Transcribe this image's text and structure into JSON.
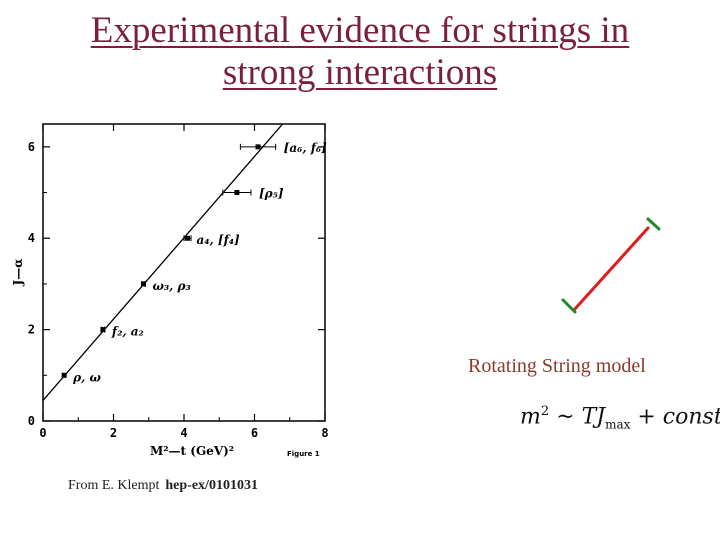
{
  "title": {
    "line1": "Experimental evidence for strings in",
    "line2": "strong interactions"
  },
  "chart_data": {
    "type": "scatter",
    "xlabel": "M²—t (GeV)²",
    "ylabel": "J—α",
    "xlim": [
      0,
      8
    ],
    "ylim": [
      0,
      6.5
    ],
    "x_ticks": [
      0,
      2,
      4,
      6,
      8
    ],
    "y_ticks": [
      0,
      2,
      4,
      6
    ],
    "figure_caption": "Figure 1",
    "points": [
      {
        "x": 0.6,
        "y": 1,
        "xerr": 0,
        "label": "ρ, ω"
      },
      {
        "x": 1.7,
        "y": 2,
        "xerr": 0.05,
        "label": "f₂, a₂"
      },
      {
        "x": 2.85,
        "y": 3,
        "xerr": 0.05,
        "label": "ω₃, ρ₃"
      },
      {
        "x": 4.1,
        "y": 4,
        "xerr": 0.1,
        "label": "a₄, [f₄]"
      },
      {
        "x": 5.5,
        "y": 5,
        "xerr": 0.4,
        "label": "[ρ₅]"
      },
      {
        "x": 6.1,
        "y": 6,
        "xerr": 0.5,
        "label": "[a₆, f₆]"
      }
    ],
    "fit_line": {
      "intercept": 0.45,
      "slope": 0.89
    }
  },
  "colors": {
    "title": "#7a1f3d",
    "string": "#e01b1b",
    "string_ends": "#1d8a2a",
    "label": "#8b3a2a"
  },
  "model": {
    "label": "Rotating String model",
    "formula": {
      "lhs": "m",
      "lhs_exp": "2",
      "approx": " ~ ",
      "rhs": "TJ",
      "rhs_sub": "max",
      "tail": " + const"
    }
  },
  "source": {
    "prefix": "From E. Klempt",
    "ref": "hep-ex/0101031"
  }
}
